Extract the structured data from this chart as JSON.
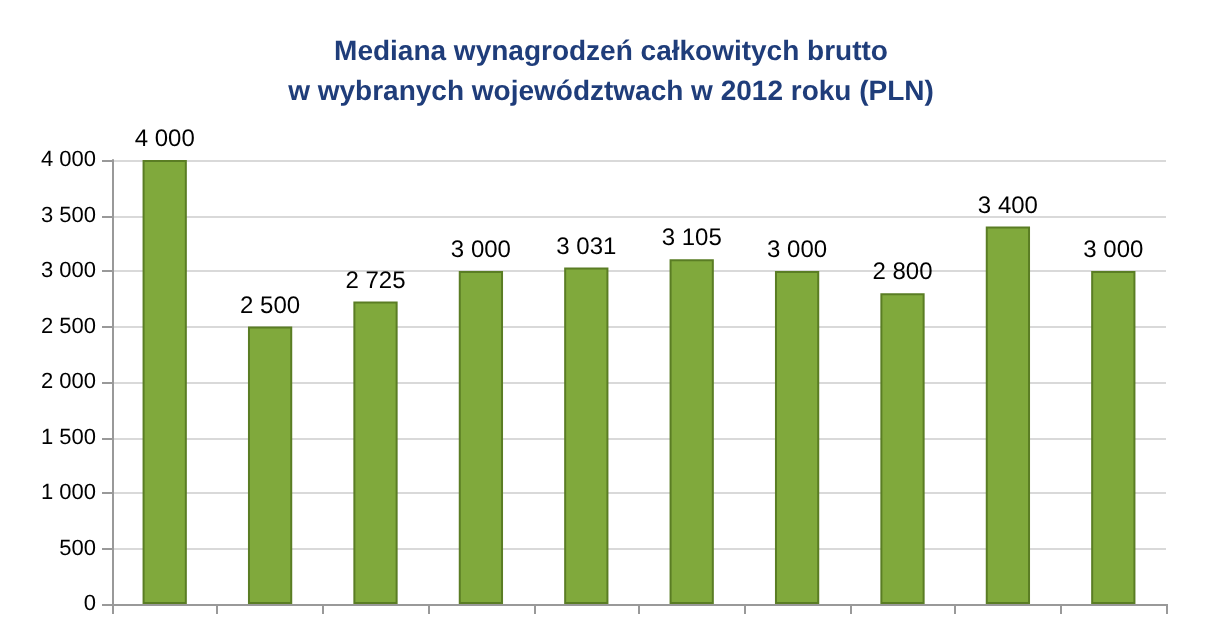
{
  "chart_data": {
    "type": "bar",
    "title": "Mediana wynagrodzeń całkowitych brutto\nw wybranych województwach w 2012 roku (PLN)",
    "categories": [
      null,
      null,
      null,
      null,
      null,
      null,
      null,
      null,
      null,
      null
    ],
    "values": [
      4000,
      2500,
      2725,
      3000,
      3031,
      3105,
      3000,
      2800,
      3400,
      3000
    ],
    "value_labels": [
      "4 000",
      "2 500",
      "2 725",
      "3 000",
      "3 031",
      "3 105",
      "3 000",
      "2 800",
      "3 400",
      "3 000"
    ],
    "color": "#80a93c",
    "ylim": [
      0,
      4000
    ],
    "yticks": [
      0,
      500,
      {
        "value": 1000,
        "label": "1 000"
      },
      {
        "value": 1500,
        "label": "1 500"
      },
      {
        "value": 2000,
        "label": "2 000"
      },
      {
        "value": 2500,
        "label": "2 500"
      },
      {
        "value": 3000,
        "label": "3 000"
      },
      {
        "value": 3500,
        "label": "3 500"
      },
      {
        "value": 4000,
        "label": "4 000"
      }
    ],
    "grid": "y"
  }
}
